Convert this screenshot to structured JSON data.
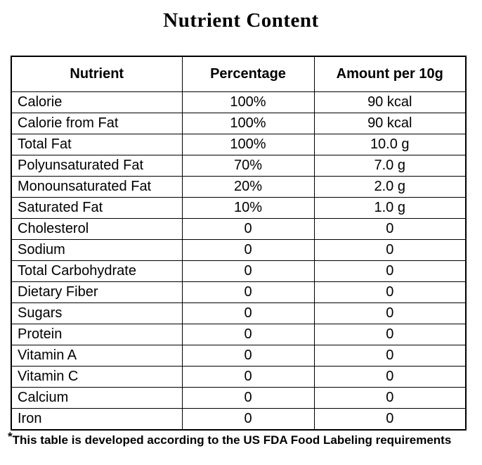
{
  "title": "Nutrient Content",
  "table": {
    "headers": [
      "Nutrient",
      "Percentage",
      "Amount per 10g"
    ],
    "rows": [
      [
        "Calorie",
        "100%",
        "90 kcal"
      ],
      [
        "Calorie from Fat",
        "100%",
        "90 kcal"
      ],
      [
        "Total Fat",
        "100%",
        "10.0 g"
      ],
      [
        "Polyunsaturated Fat",
        "70%",
        "7.0 g"
      ],
      [
        "Monounsaturated Fat",
        "20%",
        "2.0 g"
      ],
      [
        "Saturated Fat",
        "10%",
        "1.0 g"
      ],
      [
        "Cholesterol",
        "0",
        "0"
      ],
      [
        "Sodium",
        "0",
        "0"
      ],
      [
        "Total Carbohydrate",
        "0",
        "0"
      ],
      [
        "Dietary Fiber",
        "0",
        "0"
      ],
      [
        "Sugars",
        "0",
        "0"
      ],
      [
        "Protein",
        "0",
        "0"
      ],
      [
        "Vitamin A",
        "0",
        "0"
      ],
      [
        "Vitamin C",
        "0",
        "0"
      ],
      [
        "Calcium",
        "0",
        "0"
      ],
      [
        "Iron",
        "0",
        "0"
      ]
    ]
  },
  "footnote": {
    "marker": "*",
    "text": "This table is developed according to the US FDA Food Labeling requirements"
  },
  "colors": {
    "text": "#000000",
    "background": "#ffffff",
    "border": "#000000"
  }
}
